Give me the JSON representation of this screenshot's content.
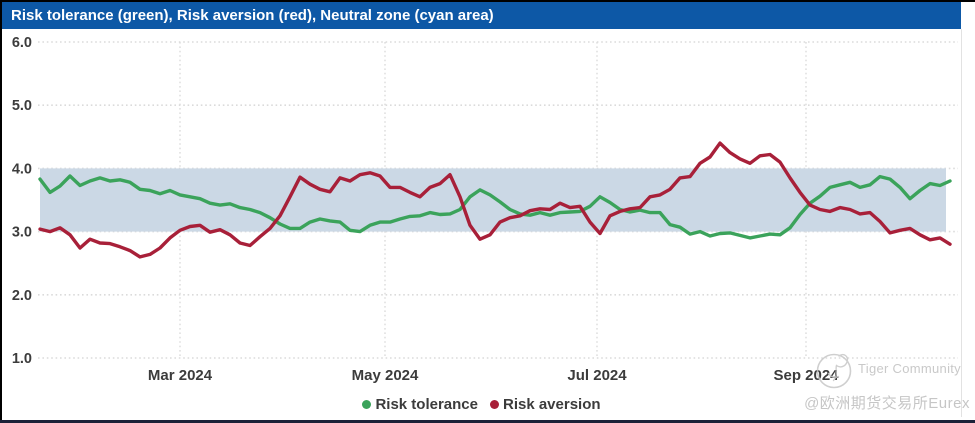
{
  "title_bar": {
    "bg_color": "#0d58a6",
    "text_color": "#ffffff"
  },
  "watermarks": {
    "community_label": "Tiger Community",
    "account_handle": "@欧洲期货交易所Eurex",
    "watermark_color": "#c8c8c8"
  },
  "chart_data": {
    "type": "line",
    "title": "Risk tolerance (green), Risk aversion (red), Neutral zone (cyan area)",
    "grid": "dotted",
    "grid_color": "#dbdbdb",
    "legend_position": "bottom-center",
    "x_range_approx": "late Jan 2024 - mid Oct 2024",
    "y_axis": {
      "min": 1.0,
      "max": 6.0,
      "ticks": [
        {
          "label": "6.0",
          "value": 6.0
        },
        {
          "label": "5.0",
          "value": 5.0
        },
        {
          "label": "4.0",
          "value": 4.0
        },
        {
          "label": "3.0",
          "value": 3.0
        },
        {
          "label": "2.0",
          "value": 2.0
        },
        {
          "label": "1.0",
          "value": 1.0
        }
      ]
    },
    "x_ticks": [
      {
        "label": "Mar 2024",
        "index": 14
      },
      {
        "label": "May 2024",
        "index": 34.5
      },
      {
        "label": "Jul 2024",
        "index": 55.7
      },
      {
        "label": "Sep 2024",
        "index": 76.6
      }
    ],
    "band": {
      "name": "Neutral zone",
      "from": 3.0,
      "to": 4.0,
      "color": "#cbd8e5"
    },
    "series": [
      {
        "name": "Risk tolerance",
        "color": "#3ba35b",
        "values": [
          3.83,
          3.62,
          3.72,
          3.88,
          3.73,
          3.8,
          3.85,
          3.8,
          3.82,
          3.78,
          3.67,
          3.65,
          3.6,
          3.65,
          3.58,
          3.55,
          3.52,
          3.45,
          3.42,
          3.44,
          3.38,
          3.35,
          3.3,
          3.22,
          3.12,
          3.05,
          3.05,
          3.15,
          3.2,
          3.17,
          3.15,
          3.02,
          3.0,
          3.1,
          3.15,
          3.15,
          3.2,
          3.24,
          3.25,
          3.3,
          3.27,
          3.28,
          3.35,
          3.55,
          3.66,
          3.58,
          3.47,
          3.35,
          3.28,
          3.26,
          3.3,
          3.26,
          3.3,
          3.31,
          3.32,
          3.4,
          3.55,
          3.46,
          3.35,
          3.31,
          3.34,
          3.3,
          3.3,
          3.11,
          3.07,
          2.96,
          3.0,
          2.93,
          2.97,
          2.98,
          2.94,
          2.9,
          2.93,
          2.96,
          2.95,
          3.06,
          3.27,
          3.45,
          3.56,
          3.7,
          3.74,
          3.78,
          3.7,
          3.74,
          3.87,
          3.83,
          3.7,
          3.52,
          3.65,
          3.76,
          3.73,
          3.8
        ]
      },
      {
        "name": "Risk aversion",
        "color": "#a82039",
        "values": [
          3.04,
          3.0,
          3.06,
          2.95,
          2.74,
          2.88,
          2.82,
          2.81,
          2.76,
          2.7,
          2.6,
          2.64,
          2.74,
          2.9,
          3.02,
          3.08,
          3.1,
          2.99,
          3.03,
          2.95,
          2.82,
          2.78,
          2.92,
          3.05,
          3.25,
          3.55,
          3.86,
          3.75,
          3.67,
          3.63,
          3.85,
          3.8,
          3.9,
          3.93,
          3.88,
          3.7,
          3.7,
          3.62,
          3.55,
          3.7,
          3.76,
          3.9,
          3.55,
          3.1,
          2.88,
          2.95,
          3.15,
          3.22,
          3.25,
          3.33,
          3.36,
          3.35,
          3.45,
          3.38,
          3.4,
          3.15,
          2.97,
          3.25,
          3.32,
          3.36,
          3.38,
          3.55,
          3.58,
          3.67,
          3.85,
          3.87,
          4.08,
          4.18,
          4.4,
          4.25,
          4.15,
          4.08,
          4.2,
          4.22,
          4.1,
          3.85,
          3.62,
          3.42,
          3.35,
          3.32,
          3.38,
          3.35,
          3.28,
          3.3,
          3.16,
          2.98,
          3.02,
          3.05,
          2.95,
          2.87,
          2.9,
          2.8
        ]
      }
    ]
  }
}
